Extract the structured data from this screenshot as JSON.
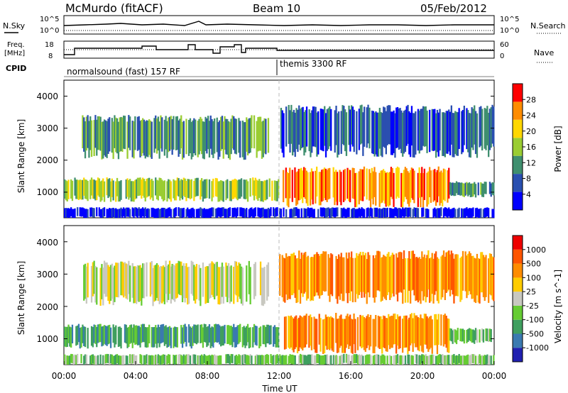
{
  "header": {
    "station": "McMurdo (fitACF)",
    "beam": "Beam 10",
    "date": "05/Feb/2012"
  },
  "params": {
    "nsky_label": "N.Sky",
    "nsearch_label": "N.Search",
    "freq_label_1": "Freq.",
    "freq_label_2": "[MHz]",
    "nave_label": "Nave",
    "cpid_label": "CPID",
    "nsky_ticks": [
      "10^5",
      "10^0"
    ],
    "nsearch_ticks": [
      "10^5",
      "10^0"
    ],
    "freq_ticks": [
      "18",
      "8"
    ],
    "nave_ticks": [
      "60",
      "0"
    ],
    "cpid_segments": [
      {
        "label": "normalsound (fast) 157 RF",
        "start_hour": 0
      },
      {
        "label": "themis 3300 RF",
        "start_hour": 12
      }
    ]
  },
  "chart_data": [
    {
      "type": "heatmap",
      "quantity": "power",
      "ylabel": "Slant Range [km]",
      "yticks": [
        "1000",
        "2000",
        "3000",
        "4000"
      ],
      "ylim": [
        200,
        4500
      ],
      "xlim_hours": [
        0,
        24
      ],
      "colorbar_label": "Power [dB]",
      "colorbar_ticks": [
        "28",
        "24",
        "20",
        "16",
        "12",
        "8",
        "4"
      ],
      "colorbar_colors": [
        "#0000ff",
        "#2a4fb0",
        "#3f8f6f",
        "#9acd32",
        "#ffd700",
        "#ff8c00",
        "#ff0000"
      ],
      "bands": [
        {
          "x0": 0.0,
          "x1": 12.0,
          "y0": 800,
          "y1": 1400,
          "level": 3
        },
        {
          "x0": 1.0,
          "x1": 11.5,
          "y0": 2200,
          "y1": 3300,
          "level": 2
        },
        {
          "x0": 12.2,
          "x1": 21.5,
          "y0": 700,
          "y1": 1700,
          "level": 5
        },
        {
          "x0": 21.5,
          "x1": 24.0,
          "y0": 900,
          "y1": 1300,
          "level": 2
        },
        {
          "x0": 12.0,
          "x1": 24.0,
          "y0": 2300,
          "y1": 3600,
          "level": 1
        },
        {
          "x0": 0.0,
          "x1": 24.0,
          "y0": 200,
          "y1": 500,
          "level": 0
        }
      ]
    },
    {
      "type": "heatmap",
      "quantity": "velocity",
      "ylabel": "Slant Range [km]",
      "xlabel": "Time UT",
      "xticks": [
        "00:00",
        "04:00",
        "08:00",
        "12:00",
        "16:00",
        "20:00",
        "00:00"
      ],
      "yticks": [
        "1000",
        "2000",
        "3000",
        "4000"
      ],
      "ylim": [
        200,
        4500
      ],
      "xlim_hours": [
        0,
        24
      ],
      "colorbar_label": "Velocity [m s^-1]",
      "colorbar_ticks": [
        "1000",
        "500",
        "100",
        "25",
        "-25",
        "-100",
        "-500",
        "-1000"
      ],
      "colorbar_colors": [
        "#2020b0",
        "#3a7ab0",
        "#3f9f5f",
        "#66cc33",
        "#c8c8c0",
        "#ffcc00",
        "#ff8c00",
        "#ff5500",
        "#ee0000"
      ],
      "bands": [
        {
          "x0": 0.0,
          "x1": 12.0,
          "y0": 800,
          "y1": 1400,
          "level": 2
        },
        {
          "x0": 1.0,
          "x1": 11.5,
          "y0": 2200,
          "y1": 3300,
          "level": 4
        },
        {
          "x0": 12.2,
          "x1": 21.5,
          "y0": 700,
          "y1": 1700,
          "level": 6
        },
        {
          "x0": 21.5,
          "x1": 24.0,
          "y0": 900,
          "y1": 1300,
          "level": 3
        },
        {
          "x0": 12.0,
          "x1": 24.0,
          "y0": 2300,
          "y1": 3600,
          "level": 6
        },
        {
          "x0": 0.0,
          "x1": 24.0,
          "y0": 200,
          "y1": 500,
          "level": 3
        }
      ]
    }
  ]
}
